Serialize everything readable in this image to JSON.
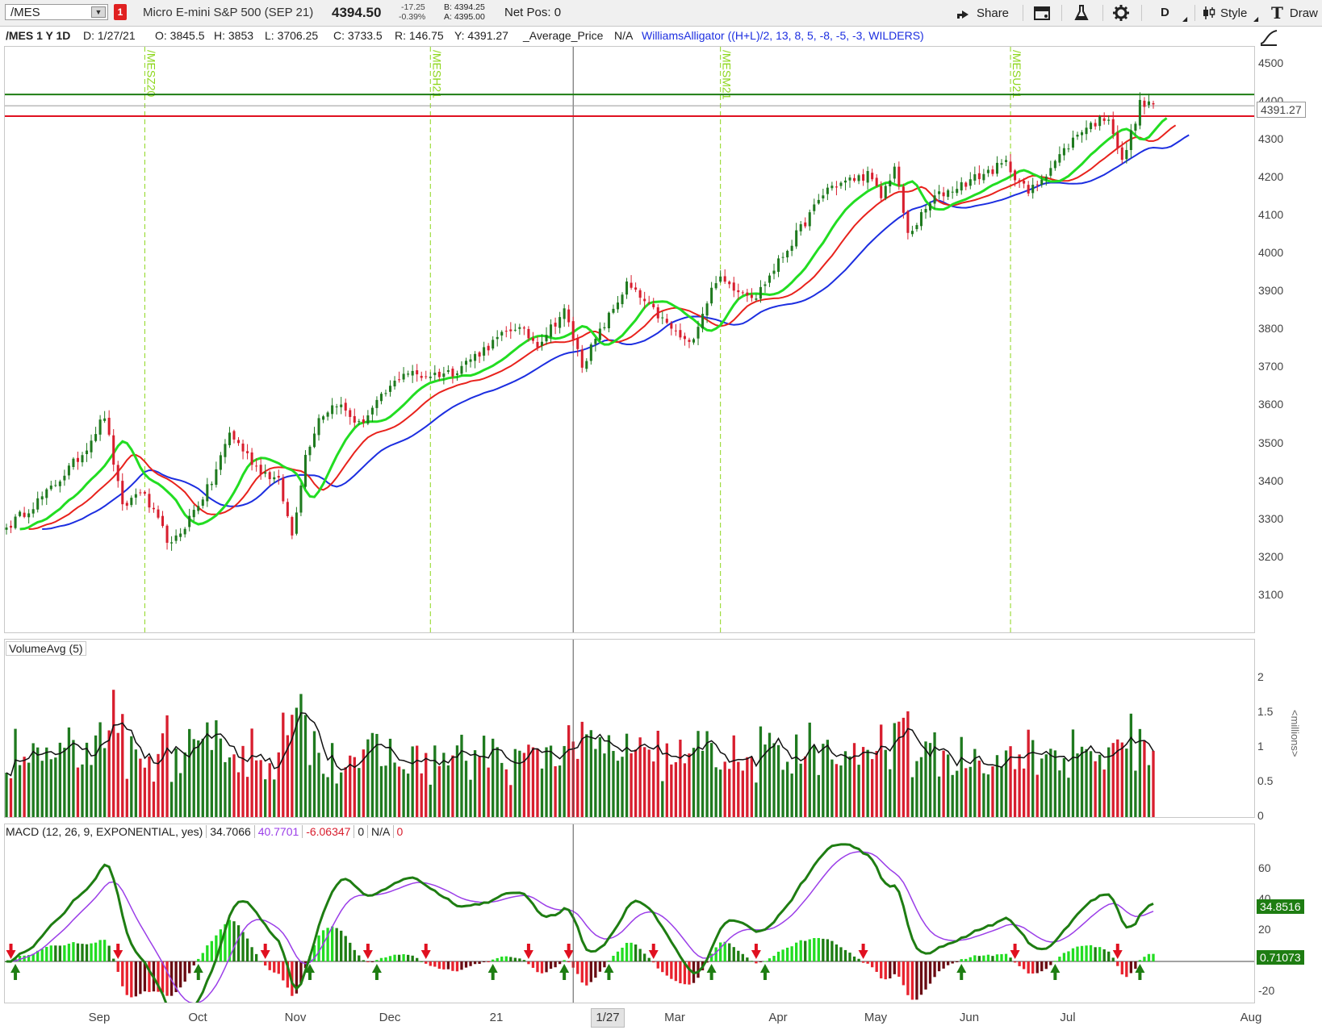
{
  "toolbar": {
    "symbol": "/MES",
    "link_badge": "1",
    "description": "Micro E-mini S&P 500 (SEP 21)",
    "last_price": "4394.50",
    "change": "-17.25",
    "change_pct": "-0.39%",
    "bid": "B: 4394.25",
    "ask": "A: 4395.00",
    "net_pos": "Net Pos: 0",
    "share_label": "Share",
    "timeframe": "D",
    "style_label": "Style",
    "drawings_label": "Draw"
  },
  "info": {
    "title": "/MES 1 Y 1D",
    "date": "D: 1/27/21",
    "open": "O: 3845.5",
    "high": "H: 3853",
    "low": "L: 3706.25",
    "close": "C: 3733.5",
    "range": "R: 146.75",
    "y": "Y: 4391.27",
    "avg_price": "_Average_Price",
    "na": "N/A",
    "study": "WilliamsAlligator ((H+L)/2, 13, 8, 5, -8, -5, -3, WILDERS)"
  },
  "price_axis": {
    "ticks": [
      "4500",
      "4400",
      "4300",
      "4200",
      "4100",
      "4000",
      "3900",
      "3800",
      "3700",
      "3600",
      "3500",
      "3400",
      "3300",
      "3200",
      "3100"
    ],
    "cursor_value": "4391.27",
    "resistance": 4421,
    "support": 4364
  },
  "expirations": [
    {
      "label": "/MESZ20",
      "date": "2020-09-15"
    },
    {
      "label": "/MESH21",
      "date": "2020-12-14"
    },
    {
      "label": "/MESM21",
      "date": "2021-03-15"
    },
    {
      "label": "/MESU21",
      "date": "2021-06-14"
    }
  ],
  "volume_pane": {
    "title": "VolumeAvg (5)",
    "ticks": [
      "2",
      "1.5",
      "1",
      "0.5",
      "0"
    ],
    "unit": "<millions>"
  },
  "macd_pane": {
    "title": "MACD (12, 26, 9, EXPONENTIAL, yes)",
    "value": "34.7066",
    "avg": "40.7701",
    "diff": "-6.06347",
    "zero": "0",
    "na": "N/A",
    "zero2": "0",
    "ticks": [
      "60",
      "40",
      "20",
      "0",
      "-20"
    ],
    "value_badge": "34.8516",
    "diff_badge": "0.71073"
  },
  "x_axis": {
    "labels": [
      "Sep",
      "Oct",
      "Nov",
      "Dec",
      "21",
      "Mar",
      "Apr",
      "May",
      "Jun",
      "Jul",
      "Aug"
    ],
    "cursor_label": "1/27"
  },
  "colors": {
    "up": "#1f7a1f",
    "down": "#d81e2e",
    "jaw": "#1c2ee0",
    "teeth": "#e8221c",
    "lips": "#22dd22",
    "resistance": "#1e7d12",
    "support": "#e01020",
    "expiry": "#8cd61a",
    "macd": "#1e7d12",
    "macd_avg": "#9b3ee8"
  },
  "chart_data": {
    "type": "candlestick",
    "anchors": [
      {
        "date": "2020-08-03",
        "close": 3280
      },
      {
        "date": "2020-08-14",
        "close": 3370
      },
      {
        "date": "2020-08-26",
        "close": 3475
      },
      {
        "date": "2020-09-02",
        "close": 3575
      },
      {
        "date": "2020-09-08",
        "close": 3330
      },
      {
        "date": "2020-09-14",
        "close": 3380
      },
      {
        "date": "2020-09-23",
        "close": 3230
      },
      {
        "date": "2020-10-06",
        "close": 3400
      },
      {
        "date": "2020-10-12",
        "close": 3530
      },
      {
        "date": "2020-10-20",
        "close": 3440
      },
      {
        "date": "2020-10-27",
        "close": 3400
      },
      {
        "date": "2020-10-30",
        "close": 3260
      },
      {
        "date": "2020-11-04",
        "close": 3470
      },
      {
        "date": "2020-11-09",
        "close": 3570
      },
      {
        "date": "2020-11-13",
        "close": 3610
      },
      {
        "date": "2020-11-20",
        "close": 3550
      },
      {
        "date": "2020-12-04",
        "close": 3690
      },
      {
        "date": "2020-12-10",
        "close": 3680
      },
      {
        "date": "2020-12-21",
        "close": 3690
      },
      {
        "date": "2021-01-08",
        "close": 3810
      },
      {
        "date": "2021-01-15",
        "close": 3765
      },
      {
        "date": "2021-01-25",
        "close": 3850
      },
      {
        "date": "2021-01-29",
        "close": 3710
      },
      {
        "date": "2021-02-12",
        "close": 3920
      },
      {
        "date": "2021-02-25",
        "close": 3815
      },
      {
        "date": "2021-03-04",
        "close": 3760
      },
      {
        "date": "2021-03-12",
        "close": 3935
      },
      {
        "date": "2021-03-25",
        "close": 3890
      },
      {
        "date": "2021-04-16",
        "close": 4175
      },
      {
        "date": "2021-04-29",
        "close": 4210
      },
      {
        "date": "2021-05-04",
        "close": 4150
      },
      {
        "date": "2021-05-07",
        "close": 4230
      },
      {
        "date": "2021-05-12",
        "close": 4050
      },
      {
        "date": "2021-05-20",
        "close": 4150
      },
      {
        "date": "2021-06-11",
        "close": 4240
      },
      {
        "date": "2021-06-18",
        "close": 4160
      },
      {
        "date": "2021-07-06",
        "close": 4330
      },
      {
        "date": "2021-07-14",
        "close": 4365
      },
      {
        "date": "2021-07-19",
        "close": 4240
      },
      {
        "date": "2021-07-23",
        "close": 4395
      },
      {
        "date": "2021-07-28",
        "close": 4395
      }
    ]
  }
}
